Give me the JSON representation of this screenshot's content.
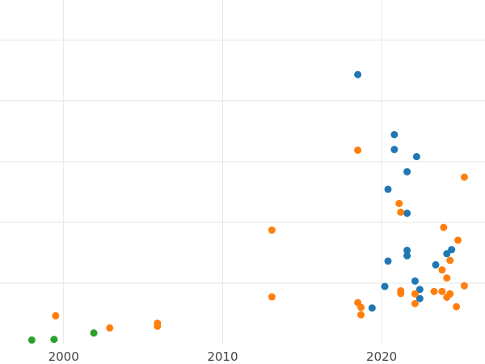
{
  "chart_data": {
    "type": "scatter",
    "title": "",
    "xlabel": "",
    "ylabel": "",
    "xlim": [
      1996.0,
      2026.5
    ],
    "ylim": [
      0,
      1
    ],
    "grid": true,
    "x_ticks": [
      {
        "value": 2000,
        "label": "2000"
      },
      {
        "value": 2010,
        "label": "2010"
      },
      {
        "value": 2020,
        "label": "2020"
      }
    ],
    "y_gridlines": [
      0.18,
      0.36,
      0.54,
      0.72,
      0.9
    ],
    "y_ticks_labeled": false,
    "series": [
      {
        "color": "#1f77b4",
        "points": [
          [
            2018.5,
            0.798
          ],
          [
            2020.8,
            0.62
          ],
          [
            2020.8,
            0.576
          ],
          [
            2022.2,
            0.555
          ],
          [
            2021.6,
            0.51
          ],
          [
            2020.4,
            0.458
          ],
          [
            2021.6,
            0.387
          ],
          [
            2021.6,
            0.277
          ],
          [
            2021.6,
            0.261
          ],
          [
            2020.4,
            0.245
          ],
          [
            2024.4,
            0.279
          ],
          [
            2024.1,
            0.267
          ],
          [
            2023.4,
            0.234
          ],
          [
            2022.1,
            0.186
          ],
          [
            2020.2,
            0.17
          ],
          [
            2022.4,
            0.161
          ],
          [
            2022.4,
            0.134
          ],
          [
            2019.4,
            0.106
          ]
        ]
      },
      {
        "color": "#ff7f0e",
        "points": [
          [
            2018.5,
            0.574
          ],
          [
            2025.2,
            0.494
          ],
          [
            2021.1,
            0.416
          ],
          [
            2021.2,
            0.39
          ],
          [
            2023.9,
            0.345
          ],
          [
            2013.1,
            0.337
          ],
          [
            2024.8,
            0.307
          ],
          [
            2024.3,
            0.247
          ],
          [
            2023.8,
            0.219
          ],
          [
            2024.1,
            0.195
          ],
          [
            2025.2,
            0.172
          ],
          [
            2021.2,
            0.157
          ],
          [
            2021.2,
            0.149
          ],
          [
            2022.1,
            0.148
          ],
          [
            2023.3,
            0.155
          ],
          [
            2023.8,
            0.155
          ],
          [
            2024.3,
            0.148
          ],
          [
            2024.1,
            0.138
          ],
          [
            2013.1,
            0.139
          ],
          [
            2018.5,
            0.122
          ],
          [
            2018.7,
            0.108
          ],
          [
            2018.7,
            0.086
          ],
          [
            2022.1,
            0.119
          ],
          [
            2024.7,
            0.11
          ],
          [
            1999.5,
            0.083
          ],
          [
            2002.9,
            0.047
          ],
          [
            2005.9,
            0.061
          ],
          [
            2005.9,
            0.052
          ]
        ]
      },
      {
        "color": "#2ca02c",
        "points": [
          [
            1998.0,
            0.011
          ],
          [
            1999.4,
            0.013
          ],
          [
            2001.9,
            0.032
          ]
        ]
      }
    ]
  },
  "theme": {
    "grid_color": "#e6e6e6",
    "background": "#ffffff"
  }
}
